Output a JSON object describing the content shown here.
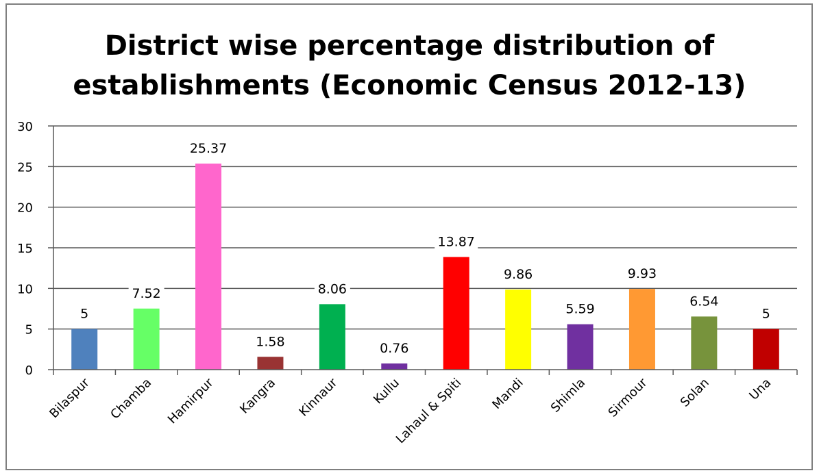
{
  "chart_data": {
    "type": "bar",
    "title_line1": "District wise percentage distribution of",
    "title_line2": "establishments  (Economic Census 2012-13)",
    "xlabel": "",
    "ylabel": "",
    "ylim": [
      0,
      30
    ],
    "yticks": [
      0,
      5,
      10,
      15,
      20,
      25,
      30
    ],
    "grid": true,
    "legend": "none",
    "categories": [
      "Bilaspur",
      "Chamba",
      "Hamirpur",
      "Kangra",
      "Kinnaur",
      "Kullu",
      "Lahaul & Spiti",
      "Mandi",
      "Shimla",
      "Sirmour",
      "Solan",
      "Una"
    ],
    "values": [
      5,
      7.52,
      25.37,
      1.58,
      8.06,
      0.76,
      13.87,
      9.86,
      5.59,
      9.93,
      6.54,
      5
    ],
    "data_labels": [
      "5",
      "7.52",
      "25.37",
      "1.58",
      "8.06",
      "0.76",
      "13.87",
      "9.86",
      "5.59",
      "9.93",
      "6.54",
      "5"
    ],
    "colors": [
      "#4f81bd",
      "#66ff66",
      "#ff66cc",
      "#993333",
      "#00b050",
      "#7030a0",
      "#ff0000",
      "#ffff00",
      "#7030a0",
      "#ff9933",
      "#77933c",
      "#c00000"
    ]
  }
}
